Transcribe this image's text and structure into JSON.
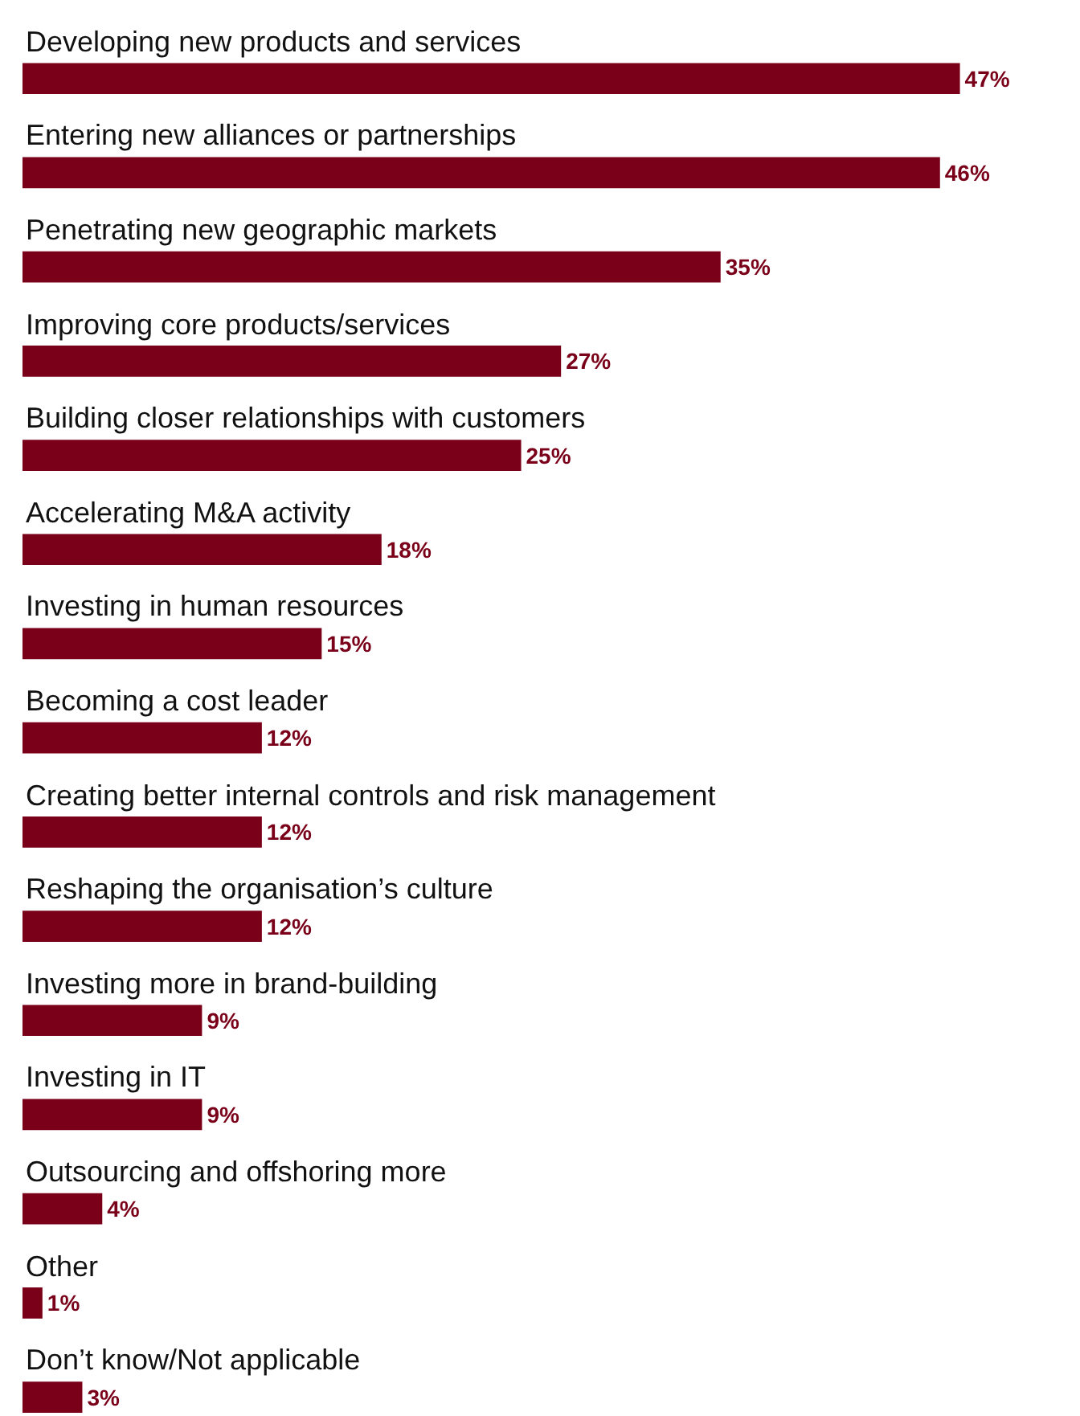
{
  "chart_data": {
    "type": "bar",
    "orientation": "horizontal",
    "categories": [
      "Developing new products and services",
      "Entering new alliances or partnerships",
      "Penetrating new geographic markets",
      "Improving core products/services",
      "Building closer relationships with customers",
      "Accelerating M&A activity",
      "Investing in human resources",
      "Becoming a cost leader",
      "Creating better internal controls and risk management",
      "Reshaping the organisation’s culture",
      "Investing more in brand-building",
      "Investing in IT",
      "Outsourcing and offshoring more",
      "Other",
      "Don’t know/Not applicable"
    ],
    "values": [
      47,
      46,
      35,
      27,
      25,
      18,
      15,
      12,
      12,
      12,
      9,
      9,
      4,
      1,
      3
    ],
    "value_labels": [
      "47%",
      "46%",
      "35%",
      "27%",
      "25%",
      "18%",
      "15%",
      "12%",
      "12%",
      "12%",
      "9%",
      "9%",
      "4%",
      "1%",
      "3%"
    ],
    "color": "#7a0019"
  }
}
